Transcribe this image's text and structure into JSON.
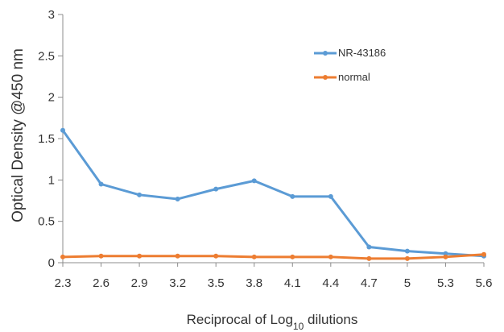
{
  "chart_data": {
    "type": "line",
    "xlabel_main": "Reciprocal of Log",
    "xlabel_sub": "10",
    "xlabel_tail": " dilutions",
    "ylabel": "Optical Density @450 nm",
    "categories": [
      "2.3",
      "2.6",
      "2.9",
      "3.2",
      "3.5",
      "3.8",
      "4.1",
      "4.4",
      "4.7",
      "5",
      "5.3",
      "5.6"
    ],
    "y_ticks": [
      "0",
      "0.5",
      "1",
      "1.5",
      "2",
      "2.5",
      "3"
    ],
    "ylim": [
      0,
      3
    ],
    "grid": false,
    "legend_position": "top-right",
    "series": [
      {
        "name": "NR-43186",
        "color": "#5b9bd5",
        "values": [
          1.6,
          0.95,
          0.82,
          0.77,
          0.89,
          0.99,
          0.8,
          0.8,
          0.19,
          0.14,
          0.11,
          0.08
        ]
      },
      {
        "name": "normal",
        "color": "#ed7d31",
        "values": [
          0.07,
          0.08,
          0.08,
          0.08,
          0.08,
          0.07,
          0.07,
          0.07,
          0.05,
          0.05,
          0.07,
          0.1
        ]
      }
    ]
  }
}
